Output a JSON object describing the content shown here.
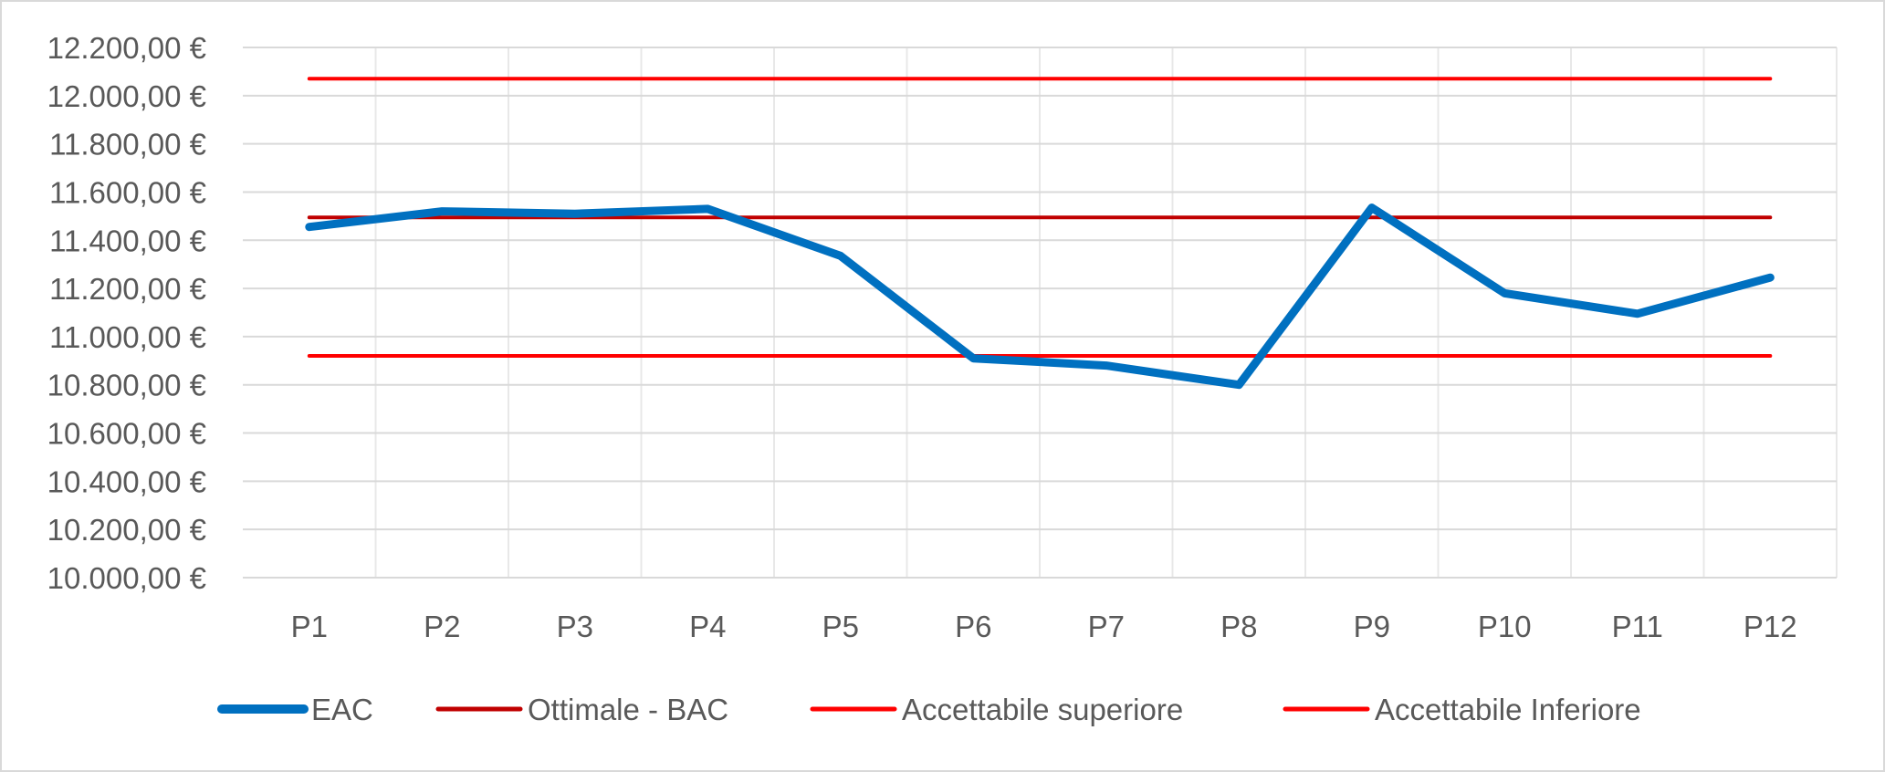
{
  "chart_data": {
    "type": "line",
    "title": "",
    "xlabel": "",
    "ylabel": "",
    "categories": [
      "P1",
      "P2",
      "P3",
      "P4",
      "P5",
      "P6",
      "P7",
      "P8",
      "P9",
      "P10",
      "P11",
      "P12"
    ],
    "y_tick_labels": [
      "10.000,00 €",
      "10.200,00 €",
      "10.400,00 €",
      "10.600,00 €",
      "10.800,00 €",
      "11.000,00 €",
      "11.200,00 €",
      "11.400,00 €",
      "11.600,00 €",
      "11.800,00 €",
      "12.000,00 €",
      "12.200,00 €"
    ],
    "ylim": [
      10000,
      12200
    ],
    "y_step": 200,
    "grid": true,
    "legend_position": "bottom",
    "series": [
      {
        "name": "EAC",
        "color": "#0070C0",
        "values": [
          11455,
          11520,
          11510,
          11530,
          11335,
          10910,
          10880,
          10800,
          11535,
          11180,
          11095,
          11245
        ]
      },
      {
        "name": "Ottimale - BAC",
        "color": "#C00000",
        "values": [
          11495,
          11495,
          11495,
          11495,
          11495,
          11495,
          11495,
          11495,
          11495,
          11495,
          11495,
          11495
        ]
      },
      {
        "name": "Accettabile superiore",
        "color": "#FF0000",
        "values": [
          12070,
          12070,
          12070,
          12070,
          12070,
          12070,
          12070,
          12070,
          12070,
          12070,
          12070,
          12070
        ]
      },
      {
        "name": "Accettabile Inferiore",
        "color": "#FF0000",
        "values": [
          10920,
          10920,
          10920,
          10920,
          10920,
          10920,
          10920,
          10920,
          10920,
          10920,
          10920,
          10920
        ]
      }
    ]
  }
}
